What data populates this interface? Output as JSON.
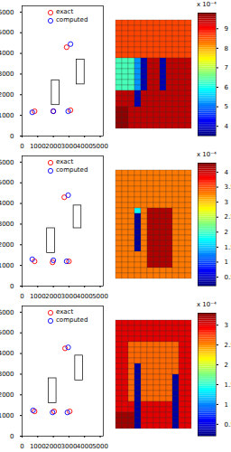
{
  "chart_data": [
    {
      "type": "scatter",
      "series": [
        {
          "name": "exact",
          "color": "red",
          "marker": "circle",
          "x": [
            800,
            2000,
            3100,
            2850
          ],
          "y": [
            1200,
            1200,
            1250,
            4300
          ]
        },
        {
          "name": "computed",
          "color": "blue",
          "marker": "circle",
          "x": [
            650,
            2000,
            2950,
            3100
          ],
          "y": [
            1150,
            1200,
            1200,
            4450
          ]
        }
      ],
      "rectangles": [
        {
          "x1": 1900,
          "x2": 2400,
          "y1": 1500,
          "y2": 2700
        },
        {
          "x1": 3500,
          "x2": 4000,
          "y1": 2500,
          "y2": 3700
        }
      ],
      "xlim": [
        0,
        5200
      ],
      "xticks": [
        0,
        1000,
        2000,
        3000,
        4000,
        5000
      ],
      "ylim": [
        0,
        6300
      ],
      "yticks": [
        0,
        1000,
        2000,
        3000,
        4000,
        5000,
        6000
      ],
      "legend": "top"
    },
    {
      "type": "heatmap",
      "cells": [
        [
          8.6,
          8.6,
          8.6,
          8.6,
          8.6,
          8.6,
          8.6,
          8.6,
          8.6,
          8.6,
          8.6,
          8.6
        ],
        [
          8.6,
          8.6,
          8.6,
          8.6,
          8.6,
          8.6,
          8.6,
          8.6,
          8.6,
          8.6,
          8.6,
          8.6
        ],
        [
          8.6,
          8.6,
          8.6,
          8.6,
          8.6,
          8.6,
          8.6,
          8.6,
          8.6,
          8.6,
          8.6,
          8.6
        ],
        [
          8.6,
          8.6,
          8.6,
          8.6,
          8.6,
          8.6,
          8.6,
          8.6,
          8.6,
          8.6,
          8.6,
          8.6
        ],
        [
          8.6,
          8.6,
          8.6,
          8.6,
          8.6,
          8.6,
          8.6,
          8.6,
          8.6,
          8.6,
          8.6,
          8.6
        ],
        [
          8.6,
          8.6,
          8.6,
          8.6,
          8.6,
          8.6,
          8.6,
          8.6,
          8.6,
          8.6,
          8.6,
          8.6
        ],
        [
          8.6,
          8.6,
          8.6,
          8.6,
          8.6,
          8.6,
          8.6,
          8.6,
          8.6,
          8.6,
          8.6,
          8.6
        ],
        [
          6.3,
          6.3,
          6.3,
          5.2,
          3.8,
          9.4,
          9.4,
          3.8,
          9.4,
          9.4,
          9.4,
          9.4
        ],
        [
          6.3,
          6.3,
          6.3,
          5.2,
          3.8,
          9.4,
          9.4,
          3.8,
          9.4,
          9.4,
          9.4,
          9.4
        ],
        [
          6.3,
          6.3,
          6.3,
          5.2,
          3.8,
          9.4,
          9.4,
          3.8,
          9.4,
          9.4,
          9.4,
          9.4
        ],
        [
          6.3,
          6.3,
          6.3,
          5.2,
          3.8,
          9.4,
          9.4,
          3.8,
          9.4,
          9.4,
          9.4,
          9.4
        ],
        [
          6.3,
          6.3,
          6.3,
          5.2,
          3.8,
          9.4,
          9.4,
          3.8,
          9.4,
          9.4,
          9.4,
          9.4
        ],
        [
          6.3,
          6.3,
          6.3,
          5.2,
          3.8,
          9.4,
          9.4,
          3.8,
          9.4,
          9.4,
          9.4,
          9.4
        ],
        [
          9.4,
          9.4,
          9.4,
          3.8,
          9.4,
          9.4,
          9.4,
          9.4,
          9.4,
          9.4,
          9.4,
          9.4
        ],
        [
          9.4,
          9.4,
          9.4,
          3.8,
          9.4,
          9.4,
          9.4,
          9.4,
          9.4,
          9.4,
          9.4,
          9.4
        ],
        [
          9.4,
          9.4,
          9.4,
          3.8,
          9.4,
          9.4,
          9.4,
          9.4,
          9.4,
          9.4,
          9.4,
          9.4
        ],
        [
          9.7,
          9.7,
          9.4,
          9.4,
          9.4,
          9.4,
          9.4,
          9.4,
          9.4,
          9.4,
          9.4,
          9.4
        ],
        [
          9.7,
          9.7,
          9.4,
          9.4,
          9.4,
          9.4,
          9.4,
          9.4,
          9.4,
          9.4,
          9.4,
          9.4
        ],
        [
          9.7,
          9.7,
          9.4,
          9.4,
          9.4,
          9.4,
          9.4,
          9.4,
          9.4,
          9.4,
          9.4,
          9.4
        ],
        [
          9.7,
          9.7,
          9.4,
          9.4,
          9.4,
          9.4,
          9.4,
          9.4,
          9.4,
          9.4,
          9.4,
          9.4
        ]
      ],
      "colorbar": {
        "range": [
          3.5,
          9.8
        ],
        "ticks": [
          4,
          5,
          6,
          7,
          8,
          9
        ],
        "label": "x 10⁻⁴"
      }
    },
    {
      "type": "scatter",
      "series": [
        {
          "name": "exact",
          "color": "red",
          "marker": "circle",
          "x": [
            800,
            1950,
            3000,
            2700
          ],
          "y": [
            1200,
            1150,
            1200,
            4300
          ]
        },
        {
          "name": "computed",
          "color": "blue",
          "marker": "circle",
          "x": [
            650,
            2000,
            2850,
            2950
          ],
          "y": [
            1300,
            1250,
            1200,
            4400
          ]
        }
      ],
      "rectangles": [
        {
          "x1": 1600,
          "x2": 2100,
          "y1": 1600,
          "y2": 2800
        },
        {
          "x1": 3300,
          "x2": 3800,
          "y1": 2800,
          "y2": 3900
        }
      ],
      "xlim": [
        0,
        5200
      ],
      "xticks": [
        0,
        1000,
        2000,
        3000,
        4000,
        5000
      ],
      "ylim": [
        0,
        6300
      ],
      "yticks": [
        0,
        1000,
        2000,
        3000,
        4000,
        5000,
        6000
      ],
      "legend": "top"
    },
    {
      "type": "heatmap",
      "cells": [
        [
          3.3,
          3.3,
          3.3,
          3.3,
          3.3,
          3.3,
          3.3,
          3.3,
          3.3,
          3.3,
          3.3,
          3.3
        ],
        [
          3.3,
          3.3,
          3.3,
          3.3,
          3.3,
          3.3,
          3.3,
          3.3,
          3.3,
          3.3,
          3.3,
          3.3
        ],
        [
          3.3,
          3.3,
          3.3,
          3.3,
          3.3,
          3.3,
          3.3,
          3.3,
          3.3,
          3.3,
          3.3,
          3.3
        ],
        [
          3.3,
          3.3,
          3.3,
          3.3,
          3.3,
          3.3,
          3.3,
          3.3,
          3.3,
          3.3,
          3.3,
          3.3
        ],
        [
          3.3,
          3.3,
          3.3,
          3.3,
          3.3,
          3.3,
          3.3,
          3.3,
          3.3,
          3.3,
          3.3,
          3.3
        ],
        [
          3.3,
          3.3,
          3.3,
          3.3,
          3.3,
          3.3,
          3.3,
          3.3,
          3.3,
          3.3,
          3.3,
          3.3
        ],
        [
          3.3,
          3.3,
          3.3,
          3.3,
          3.3,
          3.3,
          3.3,
          3.3,
          3.3,
          3.3,
          3.3,
          3.3
        ],
        [
          3.3,
          3.3,
          3.3,
          1.7,
          3.3,
          4.1,
          4.1,
          4.1,
          4.1,
          3.3,
          3.3,
          3.3
        ],
        [
          3.3,
          3.3,
          3.3,
          0.3,
          3.3,
          4.1,
          4.1,
          4.1,
          4.1,
          3.3,
          3.3,
          3.3
        ],
        [
          3.3,
          3.3,
          3.3,
          0.3,
          3.3,
          4.1,
          4.1,
          4.1,
          4.1,
          3.3,
          3.3,
          3.3
        ],
        [
          3.3,
          3.3,
          3.3,
          0.3,
          3.3,
          4.1,
          4.1,
          4.1,
          4.1,
          3.3,
          3.3,
          3.3
        ],
        [
          3.3,
          3.3,
          3.3,
          0.3,
          3.3,
          4.1,
          4.1,
          4.1,
          4.1,
          3.3,
          3.3,
          3.3
        ],
        [
          3.3,
          3.3,
          3.3,
          0.3,
          3.3,
          4.1,
          4.1,
          4.1,
          4.1,
          3.3,
          3.3,
          3.3
        ],
        [
          3.3,
          3.3,
          3.3,
          0.3,
          3.3,
          4.1,
          4.1,
          4.1,
          4.1,
          3.3,
          3.3,
          3.3
        ],
        [
          3.3,
          3.3,
          3.3,
          0.3,
          3.3,
          4.1,
          4.1,
          4.1,
          4.1,
          3.3,
          3.3,
          3.3
        ],
        [
          3.3,
          3.3,
          3.3,
          3.3,
          3.3,
          4.1,
          4.1,
          4.1,
          4.1,
          3.3,
          3.3,
          3.3
        ],
        [
          3.3,
          3.3,
          3.3,
          3.3,
          3.3,
          4.1,
          4.1,
          4.1,
          4.1,
          3.3,
          3.3,
          3.3
        ],
        [
          3.3,
          3.3,
          3.3,
          3.3,
          3.3,
          4.1,
          4.1,
          4.1,
          4.1,
          3.3,
          3.3,
          3.3
        ],
        [
          3.3,
          3.3,
          3.3,
          3.3,
          3.3,
          3.3,
          3.3,
          3.3,
          3.3,
          3.3,
          3.3,
          3.3
        ],
        [
          3.3,
          3.3,
          3.3,
          3.3,
          3.3,
          3.3,
          3.3,
          3.3,
          3.3,
          3.3,
          3.3,
          3.3
        ]
      ],
      "colorbar": {
        "range": [
          0.2,
          4.3
        ],
        "ticks": [
          0.5,
          1,
          1.5,
          2,
          2.5,
          3,
          3.5,
          4
        ],
        "label": "x 10⁻⁴"
      }
    },
    {
      "type": "scatter",
      "series": [
        {
          "name": "exact",
          "color": "red",
          "marker": "circle",
          "x": [
            800,
            2050,
            3050,
            2750
          ],
          "y": [
            1200,
            1200,
            1200,
            4250
          ]
        },
        {
          "name": "computed",
          "color": "blue",
          "marker": "circle",
          "x": [
            700,
            1950,
            2900,
            2950
          ],
          "y": [
            1250,
            1150,
            1150,
            4300
          ]
        }
      ],
      "rectangles": [
        {
          "x1": 1700,
          "x2": 2200,
          "y1": 1600,
          "y2": 2800
        },
        {
          "x1": 3400,
          "x2": 3900,
          "y1": 2700,
          "y2": 3900
        }
      ],
      "xlim": [
        0,
        5200
      ],
      "xticks": [
        0,
        1000,
        2000,
        3000,
        4000,
        5000
      ],
      "ylim": [
        0,
        6300
      ],
      "yticks": [
        0,
        1000,
        2000,
        3000,
        4000,
        5000,
        6000
      ],
      "legend": "top"
    },
    {
      "type": "heatmap",
      "cells": [
        [
          3.0,
          3.0,
          3.0,
          3.0,
          3.0,
          3.0,
          3.0,
          3.0,
          3.0,
          3.0,
          3.0,
          3.0
        ],
        [
          3.0,
          3.0,
          3.0,
          3.0,
          3.0,
          3.0,
          3.0,
          3.0,
          3.0,
          3.0,
          3.0,
          3.0
        ],
        [
          3.0,
          3.0,
          3.0,
          3.0,
          3.0,
          3.0,
          3.0,
          3.0,
          3.0,
          3.0,
          3.0,
          3.0
        ],
        [
          3.0,
          3.0,
          3.0,
          3.0,
          3.0,
          3.0,
          3.0,
          3.0,
          3.0,
          3.0,
          3.0,
          3.0
        ],
        [
          3.0,
          3.0,
          2.6,
          2.6,
          2.6,
          2.6,
          2.6,
          2.6,
          2.6,
          2.6,
          3.0,
          3.0
        ],
        [
          3.0,
          3.0,
          2.6,
          2.6,
          2.6,
          2.6,
          2.6,
          2.6,
          2.6,
          2.6,
          3.0,
          3.0
        ],
        [
          3.0,
          3.0,
          2.6,
          2.6,
          2.6,
          2.6,
          2.6,
          2.6,
          2.6,
          2.6,
          3.0,
          3.0
        ],
        [
          3.0,
          3.0,
          2.6,
          2.6,
          2.6,
          2.6,
          2.6,
          2.6,
          2.6,
          2.6,
          3.0,
          3.0
        ],
        [
          3.0,
          3.0,
          2.6,
          0.3,
          2.6,
          2.6,
          2.6,
          2.6,
          2.6,
          2.6,
          3.0,
          3.0
        ],
        [
          3.0,
          3.0,
          2.6,
          0.3,
          2.6,
          2.6,
          2.6,
          2.6,
          2.6,
          2.6,
          3.0,
          3.0
        ],
        [
          3.0,
          3.0,
          2.6,
          0.3,
          2.6,
          2.6,
          2.6,
          2.6,
          2.6,
          0.3,
          3.0,
          3.0
        ],
        [
          3.0,
          3.0,
          2.6,
          0.3,
          2.6,
          2.6,
          2.6,
          2.6,
          2.6,
          0.3,
          3.0,
          3.0
        ],
        [
          3.0,
          3.0,
          2.6,
          0.3,
          2.6,
          2.6,
          2.6,
          2.6,
          2.6,
          0.3,
          3.0,
          3.0
        ],
        [
          3.0,
          3.0,
          2.6,
          0.3,
          2.6,
          2.6,
          2.6,
          2.6,
          2.6,
          0.3,
          3.0,
          3.0
        ],
        [
          3.0,
          3.0,
          2.6,
          0.3,
          2.6,
          2.6,
          2.6,
          2.6,
          2.6,
          0.3,
          3.0,
          3.0
        ],
        [
          3.0,
          3.0,
          3.0,
          0.3,
          3.0,
          3.0,
          3.0,
          3.0,
          3.0,
          0.3,
          3.0,
          3.0
        ],
        [
          3.0,
          3.0,
          3.0,
          0.3,
          3.0,
          3.0,
          3.0,
          3.0,
          3.0,
          0.3,
          3.0,
          3.0
        ],
        [
          3.2,
          3.2,
          3.2,
          0.3,
          3.0,
          3.0,
          3.0,
          3.0,
          3.0,
          0.3,
          3.0,
          3.0
        ],
        [
          3.2,
          3.2,
          3.2,
          0.3,
          3.0,
          3.0,
          3.0,
          3.0,
          3.0,
          0.3,
          3.0,
          3.0
        ],
        [
          3.2,
          3.2,
          3.2,
          0.3,
          3.0,
          3.0,
          3.0,
          3.0,
          3.0,
          0.3,
          3.0,
          3.0
        ]
      ],
      "colorbar": {
        "range": [
          0.2,
          3.3
        ],
        "ticks": [
          0.5,
          1,
          1.5,
          2,
          2.5,
          3
        ],
        "label": "x 10⁻⁴"
      }
    }
  ]
}
